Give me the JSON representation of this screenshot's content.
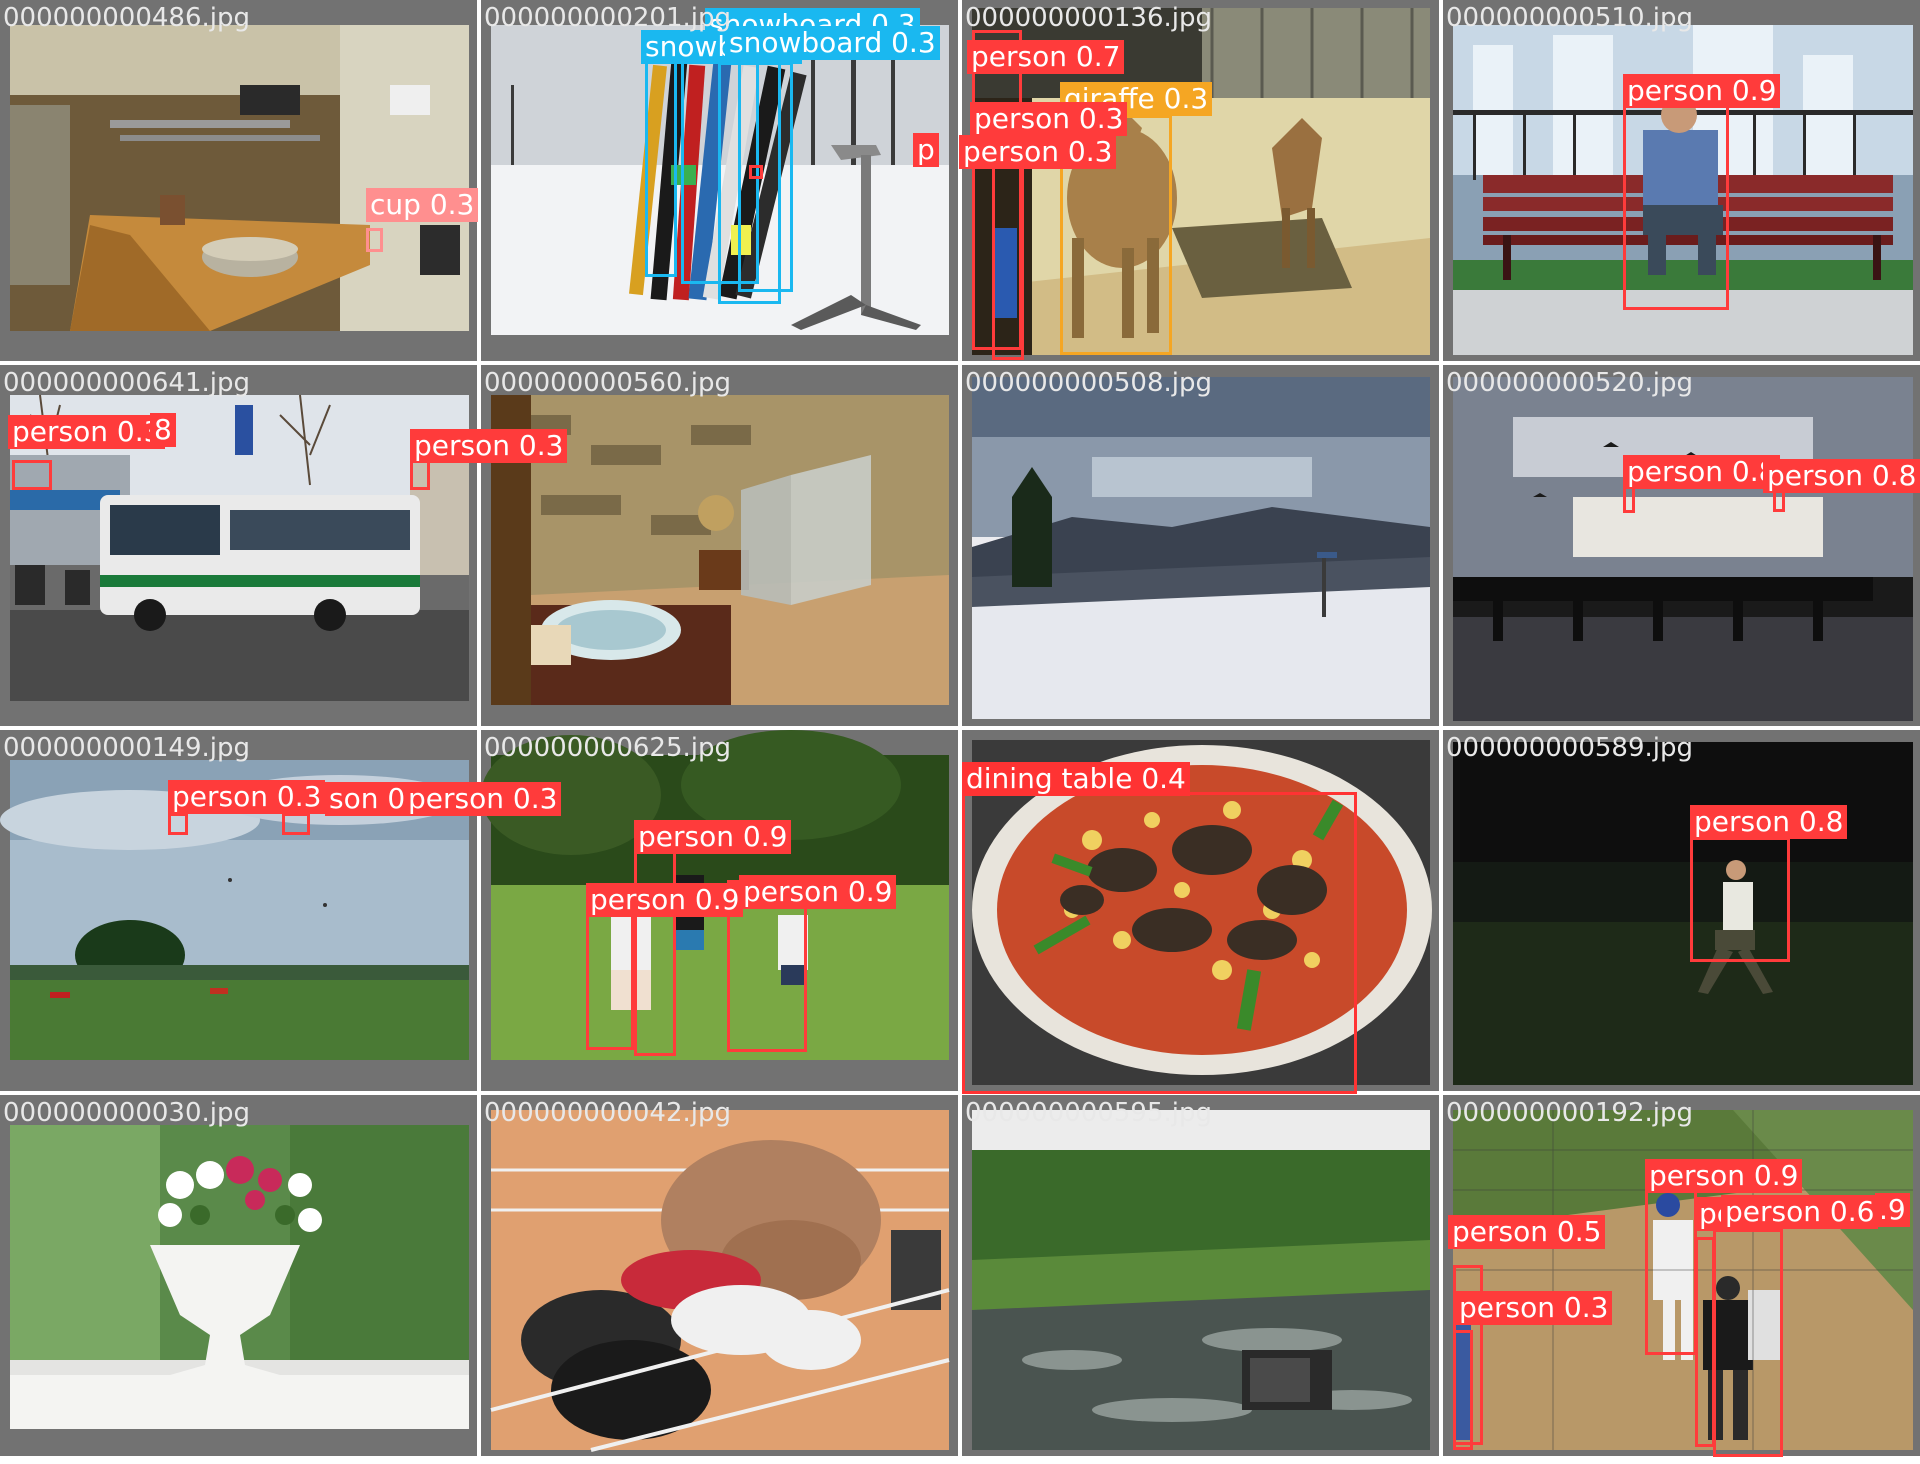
{
  "colors": {
    "person": "#ff3b3b",
    "cup": "#ff8f8f",
    "snowboard": "#1ab8f0",
    "giraffe": "#f5a623",
    "dining table": "#ff3333"
  },
  "tiles": [
    {
      "filename": "000000000486.jpg",
      "scene": "kitchen",
      "detections": [
        {
          "cls": "cup",
          "conf": "0.3",
          "text": "cup 0.3"
        }
      ]
    },
    {
      "filename": "000000000201.jpg",
      "scene": "snowboard rack in snow",
      "detections": [
        {
          "cls": "snowboard",
          "conf": "0.3",
          "text": "snowboard 0.3"
        },
        {
          "cls": "snowboard",
          "conf": "0.3",
          "text": "snowboard 0.3"
        },
        {
          "cls": "snowboard",
          "conf": "",
          "text": "snowboard"
        },
        {
          "cls": "person",
          "conf": "",
          "text": "p"
        }
      ]
    },
    {
      "filename": "000000000136.jpg",
      "scene": "giraffes in enclosure",
      "detections": [
        {
          "cls": "person",
          "conf": "0.7",
          "text": "person 0.7"
        },
        {
          "cls": "giraffe",
          "conf": "0.3",
          "text": "giraffe 0.3"
        },
        {
          "cls": "person",
          "conf": "0.3",
          "text": "person 0.3"
        },
        {
          "cls": "person",
          "conf": "0.3",
          "text": "person 0.3"
        }
      ]
    },
    {
      "filename": "000000000510.jpg",
      "scene": "man on bench",
      "detections": [
        {
          "cls": "person",
          "conf": "0.9",
          "text": "person 0.9"
        }
      ]
    },
    {
      "filename": "000000000641.jpg",
      "scene": "bus on street",
      "detections": [
        {
          "cls": "person",
          "conf": "0.3",
          "text": "person 0.3"
        },
        {
          "cls": "person",
          "conf": "0.3",
          "text": "person 0.3"
        },
        {
          "cls": "person",
          "conf": "",
          "text": "8"
        }
      ]
    },
    {
      "filename": "000000000560.jpg",
      "scene": "bathroom",
      "detections": []
    },
    {
      "filename": "000000000508.jpg",
      "scene": "snowy mountain view",
      "detections": []
    },
    {
      "filename": "000000000520.jpg",
      "scene": "pier at sunset",
      "detections": [
        {
          "cls": "person",
          "conf": "0.8",
          "text": "person 0.8"
        },
        {
          "cls": "person",
          "conf": "0.8",
          "text": "person 0.8"
        }
      ]
    },
    {
      "filename": "000000000149.jpg",
      "scene": "park with kites",
      "detections": [
        {
          "cls": "person",
          "conf": "0.3",
          "text": "person 0.3"
        },
        {
          "cls": "person",
          "conf": "",
          "text": "son 0"
        },
        {
          "cls": "person",
          "conf": "0.3",
          "text": "person 0.3"
        }
      ]
    },
    {
      "filename": "000000000625.jpg",
      "scene": "people playing frisbee",
      "detections": [
        {
          "cls": "person",
          "conf": "0.9",
          "text": "person 0.9"
        },
        {
          "cls": "person",
          "conf": "0.9",
          "text": "person 0.9"
        },
        {
          "cls": "person",
          "conf": "0.9",
          "text": "person 0.9"
        }
      ]
    },
    {
      "filename": "",
      "scene": "pizza",
      "detections": [
        {
          "cls": "dining table",
          "conf": "0.4",
          "text": "dining table 0.4"
        }
      ]
    },
    {
      "filename": "000000000589.jpg",
      "scene": "man at night",
      "detections": [
        {
          "cls": "person",
          "conf": "0.8",
          "text": "person 0.8"
        }
      ]
    },
    {
      "filename": "000000000030.jpg",
      "scene": "flower vase",
      "detections": []
    },
    {
      "filename": "000000000042.jpg",
      "scene": "dog in shoe rack",
      "detections": []
    },
    {
      "filename": "000000000595.jpg",
      "scene": "river with tv",
      "detections": []
    },
    {
      "filename": "000000000192.jpg",
      "scene": "baseball game",
      "detections": [
        {
          "cls": "person",
          "conf": "0.9",
          "text": "person 0.9"
        },
        {
          "cls": "person",
          "conf": "0.5",
          "text": "person 0.5"
        },
        {
          "cls": "person",
          "conf": "0.6",
          "text": "person 0.6"
        },
        {
          "cls": "person",
          "conf": "0.3",
          "text": "person 0.3"
        },
        {
          "cls": "person",
          "conf": "",
          "text": "pe"
        },
        {
          "cls": "person",
          "conf": "",
          "text": ".9"
        }
      ]
    }
  ]
}
